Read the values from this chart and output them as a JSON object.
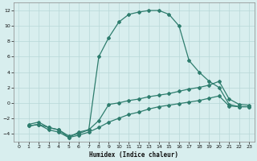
{
  "line1_x": [
    1,
    2,
    3,
    4,
    5,
    6,
    7,
    8,
    9,
    10,
    11,
    12,
    13,
    14,
    15,
    16,
    17,
    18,
    19,
    20,
    21,
    22,
    23
  ],
  "line1_y": [
    -3.0,
    -2.8,
    -3.2,
    -3.5,
    -4.5,
    -3.8,
    -3.5,
    6.0,
    8.5,
    10.5,
    11.5,
    11.8,
    12.0,
    12.0,
    11.5,
    10.0,
    5.5,
    4.0,
    2.8,
    2.0,
    -0.2,
    -0.5,
    -0.5
  ],
  "line2_x": [
    1,
    2,
    3,
    4,
    5,
    6,
    7,
    8,
    9,
    10,
    11,
    12,
    13,
    14,
    15,
    16,
    17,
    18,
    19,
    20,
    21,
    22,
    23
  ],
  "line2_y": [
    -2.8,
    -2.5,
    -3.2,
    -3.5,
    -4.3,
    -4.0,
    -3.5,
    -2.3,
    -0.2,
    0.0,
    0.3,
    0.5,
    0.8,
    1.0,
    1.2,
    1.5,
    1.8,
    2.0,
    2.3,
    2.8,
    0.5,
    -0.2,
    -0.3
  ],
  "line3_x": [
    1,
    2,
    3,
    4,
    5,
    6,
    7,
    8,
    9,
    10,
    11,
    12,
    13,
    14,
    15,
    16,
    17,
    18,
    19,
    20,
    21,
    22,
    23
  ],
  "line3_y": [
    -3.0,
    -2.8,
    -3.5,
    -3.8,
    -4.5,
    -4.2,
    -3.8,
    -3.2,
    -2.5,
    -2.0,
    -1.5,
    -1.2,
    -0.8,
    -0.5,
    -0.3,
    -0.1,
    0.1,
    0.3,
    0.6,
    0.9,
    -0.4,
    -0.5,
    -0.5
  ],
  "line_color": "#2e7d6e",
  "bg_color": "#d8eeee",
  "grid_color": "#b8d8d8",
  "xlabel": "Humidex (Indice chaleur)",
  "ylim": [
    -5,
    13
  ],
  "xlim": [
    -0.5,
    23.5
  ],
  "yticks": [
    -4,
    -2,
    0,
    2,
    4,
    6,
    8,
    10,
    12
  ],
  "xticks": [
    0,
    1,
    2,
    3,
    4,
    5,
    6,
    7,
    8,
    9,
    10,
    11,
    12,
    13,
    14,
    15,
    16,
    17,
    18,
    19,
    20,
    21,
    22,
    23
  ]
}
